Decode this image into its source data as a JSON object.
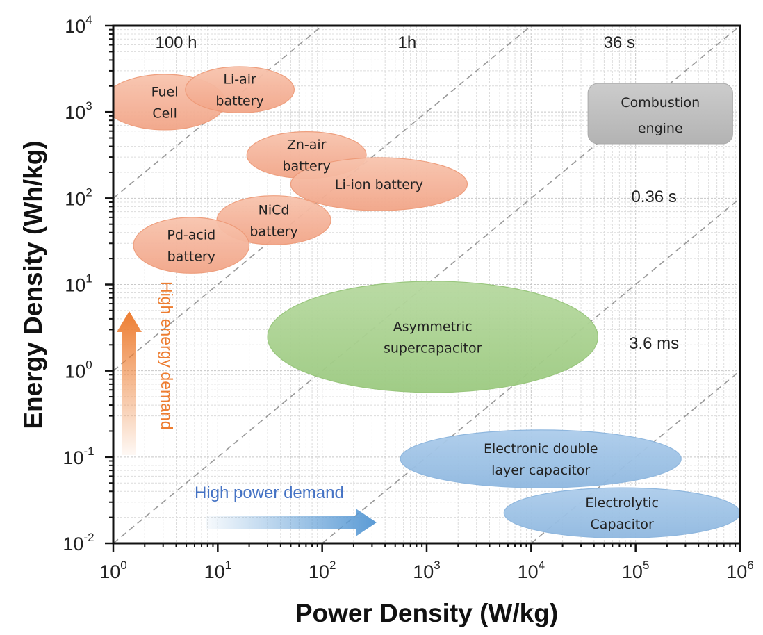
{
  "chart_data": {
    "type": "scatter",
    "xlabel": "Power Density (W/kg)",
    "ylabel": "Energy Density (Wh/kg)",
    "xscale": "log",
    "yscale": "log",
    "xlim": [
      1,
      1000000
    ],
    "ylim": [
      0.01,
      10000
    ],
    "x_ticks": [
      {
        "base": "10",
        "exp": "0"
      },
      {
        "base": "10",
        "exp": "1"
      },
      {
        "base": "10",
        "exp": "2"
      },
      {
        "base": "10",
        "exp": "3"
      },
      {
        "base": "10",
        "exp": "4"
      },
      {
        "base": "10",
        "exp": "5"
      },
      {
        "base": "10",
        "exp": "6"
      }
    ],
    "y_ticks": [
      {
        "base": "10",
        "exp": "-2"
      },
      {
        "base": "10",
        "exp": "-1"
      },
      {
        "base": "10",
        "exp": "0"
      },
      {
        "base": "10",
        "exp": "1"
      },
      {
        "base": "10",
        "exp": "2"
      },
      {
        "base": "10",
        "exp": "3"
      },
      {
        "base": "10",
        "exp": "4"
      }
    ],
    "grid": true,
    "time_lines": [
      {
        "label": "100 h",
        "hours": 100,
        "label_at": [
          4,
          5500
        ]
      },
      {
        "label": "1h",
        "hours": 1,
        "label_at": [
          650,
          5500
        ]
      },
      {
        "label": "36 s",
        "hours": 0.01,
        "label_at": [
          70000,
          5500
        ]
      },
      {
        "label": "0.36 s",
        "hours": 0.0001,
        "label_at": [
          150000,
          90
        ]
      },
      {
        "label": "3.6 ms",
        "hours": 1e-06,
        "label_at": [
          150000,
          1.8
        ]
      }
    ],
    "regions": [
      {
        "name": "Fuel Cell",
        "lines": [
          "Fuel",
          "Cell"
        ],
        "x": [
          0.82,
          11.8
        ],
        "y": [
          620,
          2730
        ],
        "color": "#F4B097",
        "shape": "ellipse"
      },
      {
        "name": "Li-air battery",
        "lines": [
          "Li-air",
          "battery"
        ],
        "x": [
          4.9,
          54
        ],
        "y": [
          980,
          3350
        ],
        "color": "#F4B097",
        "shape": "ellipse"
      },
      {
        "name": "Zn-air battery",
        "lines": [
          "Zn-air",
          "battery"
        ],
        "x": [
          19,
          264
        ],
        "y": [
          170,
          590
        ],
        "color": "#F4B097",
        "shape": "ellipse"
      },
      {
        "name": "Li-ion battery",
        "lines": [
          "Li-ion battery"
        ],
        "x": [
          50,
          2450
        ],
        "y": [
          72,
          295
        ],
        "color": "#F4B097",
        "shape": "ellipse"
      },
      {
        "name": "NiCd battery",
        "lines": [
          "NiCd",
          "battery"
        ],
        "x": [
          9.8,
          121
        ],
        "y": [
          29,
          107
        ],
        "color": "#F4B097",
        "shape": "ellipse"
      },
      {
        "name": "Pd-acid battery",
        "lines": [
          "Pd-acid",
          "battery"
        ],
        "x": [
          1.56,
          20
        ],
        "y": [
          13.5,
          60
        ],
        "color": "#F4B097",
        "shape": "ellipse"
      },
      {
        "name": "Asymmetric supercapacitor",
        "lines": [
          "Asymmetric",
          "supercapacitor"
        ],
        "x": [
          30,
          43500
        ],
        "y": [
          0.56,
          10.9
        ],
        "color": "#A9D18E",
        "shape": "ellipse"
      },
      {
        "name": "Electronic double layer capacitor",
        "lines": [
          "Electronic double",
          "layer capacitor"
        ],
        "x": [
          560,
          273000
        ],
        "y": [
          0.044,
          0.206
        ],
        "color": "#9DC3E6",
        "shape": "ellipse"
      },
      {
        "name": "Electrolytic Capacitor",
        "lines": [
          "Electrolytic",
          "Capacitor"
        ],
        "x": [
          5500,
          1000000
        ],
        "y": [
          0.0115,
          0.044
        ],
        "color": "#9DC3E6",
        "shape": "ellipse"
      },
      {
        "name": "Combustion engine",
        "lines": [
          "Combustion",
          "engine"
        ],
        "x": [
          35000,
          850000
        ],
        "y": [
          427,
          2140
        ],
        "color": "#BFBFBF",
        "shape": "rounded-rect"
      }
    ],
    "annotations": [
      {
        "text": "High energy demand",
        "direction": "up",
        "color": "#ED7D31"
      },
      {
        "text": "High power demand",
        "direction": "right",
        "color": "#4472C4"
      }
    ]
  }
}
